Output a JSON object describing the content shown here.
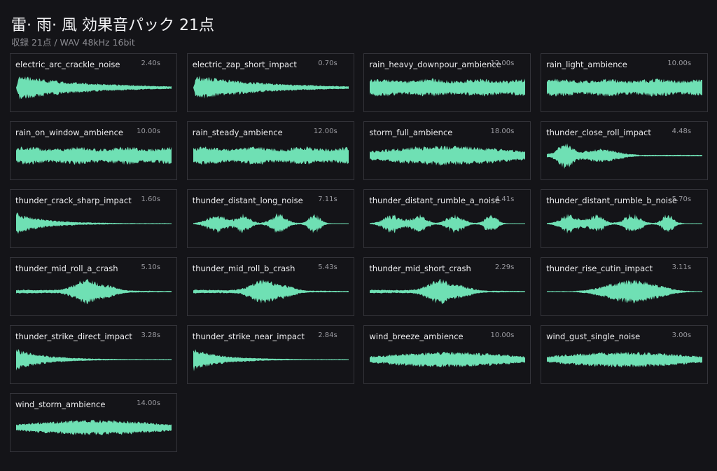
{
  "header": {
    "title": "雷· 雨· 風 効果音パック 21点",
    "subtitle": "収録 21点  /  WAV 48kHz 16bit"
  },
  "colors": {
    "background": "#141418",
    "card_border": "#34343a",
    "waveform": "#6fe0b4"
  },
  "sounds": [
    {
      "name": "electric_arc_crackle_noise",
      "duration": "2.40s"
    },
    {
      "name": "electric_zap_short_impact",
      "duration": "0.70s"
    },
    {
      "name": "rain_heavy_downpour_ambience",
      "duration": "12.00s"
    },
    {
      "name": "rain_light_ambience",
      "duration": "10.00s"
    },
    {
      "name": "rain_on_window_ambience",
      "duration": "10.00s"
    },
    {
      "name": "rain_steady_ambience",
      "duration": "12.00s"
    },
    {
      "name": "storm_full_ambience",
      "duration": "18.00s"
    },
    {
      "name": "thunder_close_roll_impact",
      "duration": "4.48s"
    },
    {
      "name": "thunder_crack_sharp_impact",
      "duration": "1.60s"
    },
    {
      "name": "thunder_distant_long_noise",
      "duration": "7.11s"
    },
    {
      "name": "thunder_distant_rumble_a_noise",
      "duration": "4.41s"
    },
    {
      "name": "thunder_distant_rumble_b_noise",
      "duration": "5.70s"
    },
    {
      "name": "thunder_mid_roll_a_crash",
      "duration": "5.10s"
    },
    {
      "name": "thunder_mid_roll_b_crash",
      "duration": "5.43s"
    },
    {
      "name": "thunder_mid_short_crash",
      "duration": "2.29s"
    },
    {
      "name": "thunder_rise_cutin_impact",
      "duration": "3.11s"
    },
    {
      "name": "thunder_strike_direct_impact",
      "duration": "3.28s"
    },
    {
      "name": "thunder_strike_near_impact",
      "duration": "2.84s"
    },
    {
      "name": "wind_breeze_ambience",
      "duration": "10.00s"
    },
    {
      "name": "wind_gust_single_noise",
      "duration": "3.00s"
    },
    {
      "name": "wind_storm_ambience",
      "duration": "14.00s"
    }
  ]
}
